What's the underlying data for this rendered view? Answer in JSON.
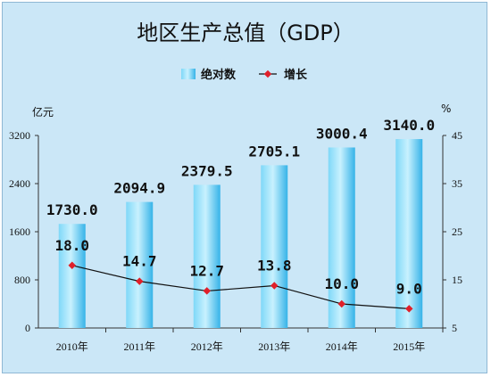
{
  "chart_data": {
    "type": "bar",
    "title": "地区生产总值（GDP）",
    "categories": [
      "2010年",
      "2011年",
      "2012年",
      "2013年",
      "2014年",
      "2015年"
    ],
    "series": [
      {
        "name": "绝对数",
        "type": "bar",
        "axis": "left",
        "values": [
          1730.0,
          2094.9,
          2379.5,
          2705.1,
          3000.4,
          3140.0
        ],
        "labels": [
          "1730.0",
          "2094.9",
          "2379.5",
          "2705.1",
          "3000.4",
          "3140.0"
        ]
      },
      {
        "name": "增长",
        "type": "line",
        "axis": "right",
        "values": [
          18.0,
          14.7,
          12.7,
          13.8,
          10.0,
          9.0
        ],
        "labels": [
          "18.0",
          "14.7",
          "12.7",
          "13.8",
          "10.0",
          "9.0"
        ]
      }
    ],
    "y_left": {
      "unit": "亿元",
      "ylim": [
        0,
        3200
      ],
      "ticks": [
        "0",
        "800",
        "1600",
        "2400",
        "3200"
      ]
    },
    "y_right": {
      "unit": "%",
      "ylim": [
        5,
        45
      ],
      "ticks": [
        "5",
        "15",
        "25",
        "35",
        "45"
      ]
    },
    "legend": "top-center",
    "grid": false
  },
  "colors": {
    "background": "#cbe7f7",
    "bar_light": "#9fe3fb",
    "bar_dark": "#39b8ec",
    "line": "#111111",
    "marker": "#e0202a"
  }
}
